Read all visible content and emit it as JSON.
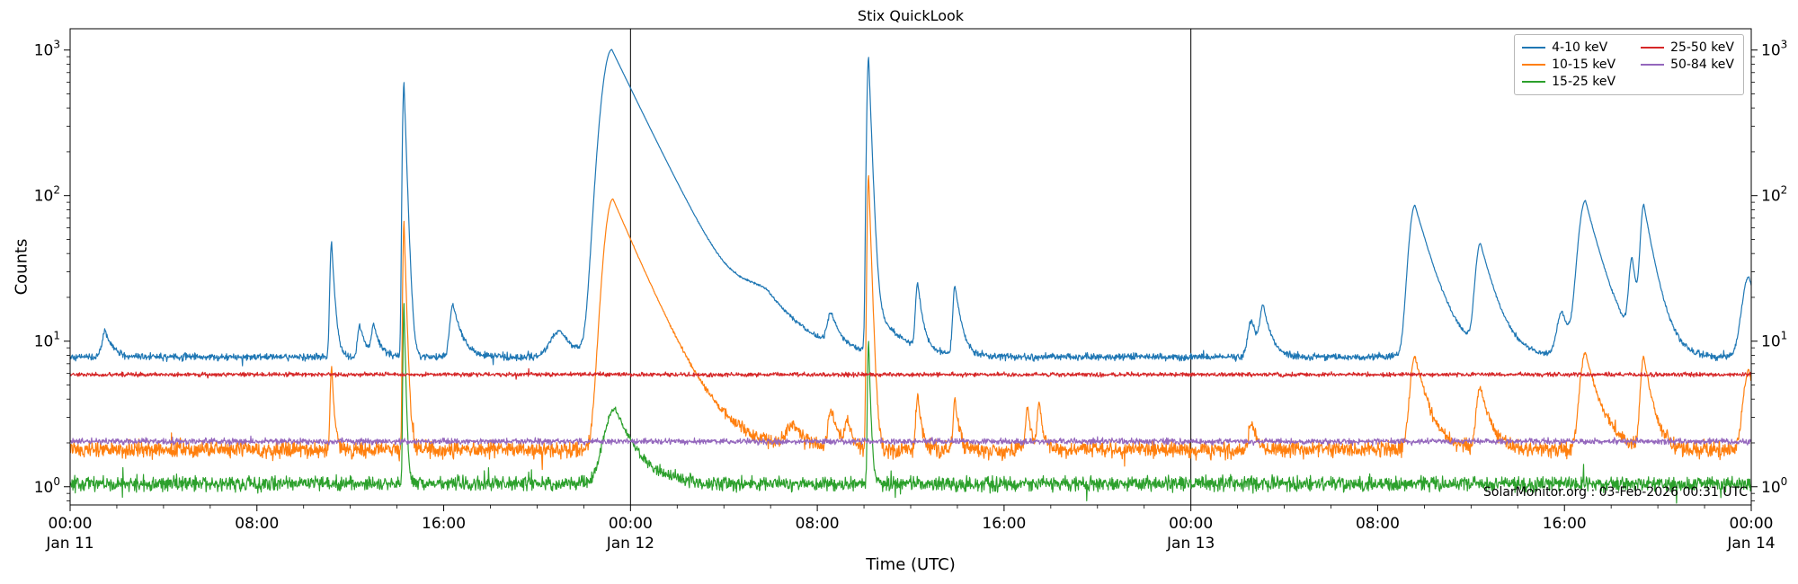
{
  "chart_data": {
    "type": "line",
    "title": "Stix QuickLook",
    "xlabel": "Time (UTC)",
    "ylabel": "Counts",
    "watermark": "SolarMonitor.org : 03-Feb-2026 00:31 UTC",
    "x_unit": "hours since Jan 11 00:00 UTC",
    "x_range_hours": [
      0,
      72
    ],
    "x_minor_step_hours": 2,
    "y_scale": "log",
    "ylim": [
      0.75,
      1400
    ],
    "y_ticks": [
      1,
      10,
      100,
      1000
    ],
    "x_major_ticks": [
      {
        "hour": 0,
        "time": "00:00",
        "date": "Jan 11"
      },
      {
        "hour": 8,
        "time": "08:00"
      },
      {
        "hour": 16,
        "time": "16:00"
      },
      {
        "hour": 24,
        "time": "00:00",
        "date": "Jan 12"
      },
      {
        "hour": 32,
        "time": "08:00"
      },
      {
        "hour": 40,
        "time": "16:00"
      },
      {
        "hour": 48,
        "time": "00:00",
        "date": "Jan 13"
      },
      {
        "hour": 56,
        "time": "08:00"
      },
      {
        "hour": 64,
        "time": "16:00"
      },
      {
        "hour": 72,
        "time": "00:00",
        "date": "Jan 14"
      }
    ],
    "day_boundary_lines_hours": [
      24,
      48
    ],
    "legend": {
      "position": "upper right",
      "columns": 2
    },
    "series": [
      {
        "name": "4-10 keV",
        "color": "#1f77b4",
        "baseline": 7.8,
        "noise": 0.055,
        "events": [
          {
            "t": 1.5,
            "peak": 4,
            "rise": 0.12,
            "decay": 0.3
          },
          {
            "t": 11.2,
            "peak": 40,
            "rise": 0.06,
            "decay": 0.12
          },
          {
            "t": 12.4,
            "peak": 5,
            "rise": 0.08,
            "decay": 0.25
          },
          {
            "t": 13.0,
            "peak": 5,
            "rise": 0.08,
            "decay": 0.25
          },
          {
            "t": 14.3,
            "peak": 590,
            "rise": 0.05,
            "decay": 0.09
          },
          {
            "t": 16.4,
            "peak": 10,
            "rise": 0.12,
            "decay": 0.35
          },
          {
            "t": 21.0,
            "peak": 4,
            "rise": 0.4,
            "decay": 0.6
          },
          {
            "t": 23.2,
            "peak": 1000,
            "rise": 0.35,
            "decay": 1.3
          },
          {
            "t": 29.8,
            "peak": 9,
            "rise": 1.1,
            "decay": 1.4
          },
          {
            "t": 32.6,
            "peak": 6,
            "rise": 0.15,
            "decay": 0.35
          },
          {
            "t": 34.2,
            "peak": 880,
            "rise": 0.06,
            "decay": 0.1
          },
          {
            "t": 34.6,
            "peak": 7,
            "rise": 0.25,
            "decay": 1.0
          },
          {
            "t": 36.3,
            "peak": 16,
            "rise": 0.08,
            "decay": 0.2
          },
          {
            "t": 37.9,
            "peak": 16,
            "rise": 0.08,
            "decay": 0.25
          },
          {
            "t": 50.6,
            "peak": 6,
            "rise": 0.15,
            "decay": 0.3
          },
          {
            "t": 51.1,
            "peak": 9,
            "rise": 0.12,
            "decay": 0.3
          },
          {
            "t": 57.6,
            "peak": 78,
            "rise": 0.22,
            "decay": 0.7
          },
          {
            "t": 60.4,
            "peak": 38,
            "rise": 0.18,
            "decay": 0.6
          },
          {
            "t": 63.9,
            "peak": 8,
            "rise": 0.2,
            "decay": 0.4
          },
          {
            "t": 64.9,
            "peak": 84,
            "rise": 0.25,
            "decay": 0.65
          },
          {
            "t": 66.9,
            "peak": 26,
            "rise": 0.12,
            "decay": 0.25
          },
          {
            "t": 67.4,
            "peak": 74,
            "rise": 0.12,
            "decay": 0.45
          },
          {
            "t": 71.9,
            "peak": 20,
            "rise": 0.25,
            "decay": 0.5
          }
        ]
      },
      {
        "name": "10-15 keV",
        "color": "#ff7f0e",
        "baseline": 1.8,
        "noise": 0.13,
        "events": [
          {
            "t": 11.2,
            "peak": 5,
            "rise": 0.05,
            "decay": 0.1
          },
          {
            "t": 14.3,
            "peak": 65,
            "rise": 0.04,
            "decay": 0.08
          },
          {
            "t": 23.25,
            "peak": 93,
            "rise": 0.3,
            "decay": 1.15
          },
          {
            "t": 31.0,
            "peak": 0.8,
            "rise": 0.3,
            "decay": 0.5
          },
          {
            "t": 32.6,
            "peak": 1.5,
            "rise": 0.12,
            "decay": 0.3
          },
          {
            "t": 33.3,
            "peak": 1.0,
            "rise": 0.1,
            "decay": 0.2
          },
          {
            "t": 34.2,
            "peak": 135,
            "rise": 0.05,
            "decay": 0.09
          },
          {
            "t": 36.3,
            "peak": 2.5,
            "rise": 0.07,
            "decay": 0.15
          },
          {
            "t": 37.9,
            "peak": 2.2,
            "rise": 0.07,
            "decay": 0.15
          },
          {
            "t": 41.0,
            "peak": 1.8,
            "rise": 0.07,
            "decay": 0.15
          },
          {
            "t": 41.5,
            "peak": 2.0,
            "rise": 0.07,
            "decay": 0.15
          },
          {
            "t": 50.6,
            "peak": 1.0,
            "rise": 0.1,
            "decay": 0.2
          },
          {
            "t": 57.6,
            "peak": 6,
            "rise": 0.18,
            "decay": 0.5
          },
          {
            "t": 60.4,
            "peak": 3,
            "rise": 0.15,
            "decay": 0.4
          },
          {
            "t": 64.9,
            "peak": 6.5,
            "rise": 0.2,
            "decay": 0.55
          },
          {
            "t": 67.4,
            "peak": 6,
            "rise": 0.12,
            "decay": 0.35
          },
          {
            "t": 71.9,
            "peak": 4.5,
            "rise": 0.2,
            "decay": 0.4
          }
        ]
      },
      {
        "name": "15-25 keV",
        "color": "#2ca02c",
        "baseline": 1.05,
        "noise": 0.11,
        "events": [
          {
            "t": 14.3,
            "peak": 17,
            "rise": 0.035,
            "decay": 0.06
          },
          {
            "t": 23.35,
            "peak": 2.4,
            "rise": 0.4,
            "decay": 0.8
          },
          {
            "t": 34.2,
            "peak": 9,
            "rise": 0.04,
            "decay": 0.07
          }
        ]
      },
      {
        "name": "25-50 keV",
        "color": "#d62728",
        "baseline": 5.9,
        "noise": 0.032,
        "events": []
      },
      {
        "name": "50-84 keV",
        "color": "#9467bd",
        "baseline": 2.05,
        "noise": 0.045,
        "events": []
      }
    ]
  }
}
